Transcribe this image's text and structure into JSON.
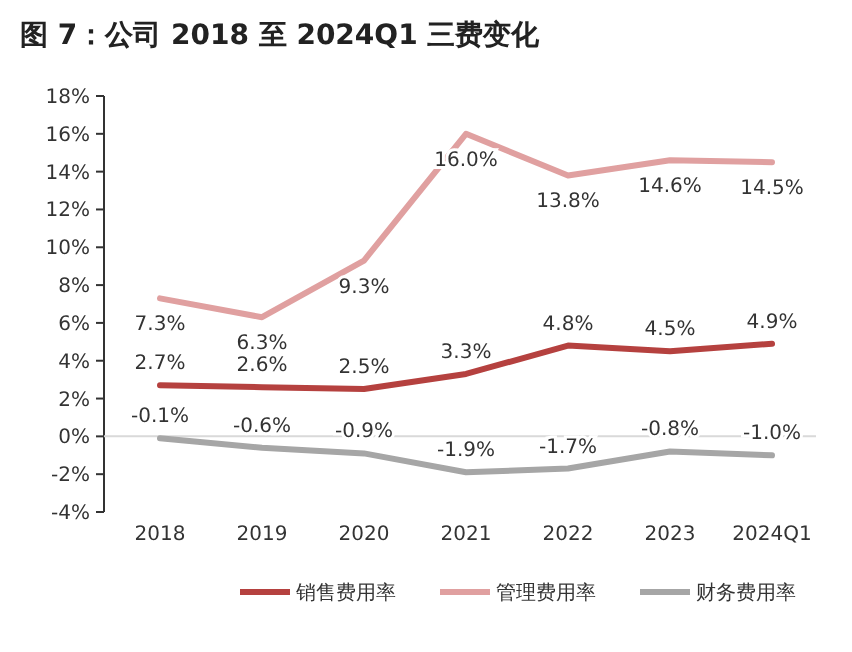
{
  "chart_data": {
    "type": "line",
    "title": "图 7：公司 2018 至 2024Q1 三费变化",
    "categories": [
      "2018",
      "2019",
      "2020",
      "2021",
      "2022",
      "2023",
      "2024Q1"
    ],
    "series": [
      {
        "name": "销售费用率",
        "color": "#b5413f",
        "values": [
          2.7,
          2.6,
          2.5,
          3.3,
          4.8,
          4.5,
          4.9
        ],
        "value_labels": [
          "2.7%",
          "2.6%",
          "2.5%",
          "3.3%",
          "4.8%",
          "4.5%",
          "4.9%"
        ]
      },
      {
        "name": "管理费用率",
        "color": "#e0a0a0",
        "values": [
          7.3,
          6.3,
          9.3,
          16.0,
          13.8,
          14.6,
          14.5
        ],
        "value_labels": [
          "7.3%",
          "6.3%",
          "9.3%",
          "16.0%",
          "13.8%",
          "14.6%",
          "14.5%"
        ]
      },
      {
        "name": "财务费用率",
        "color": "#a6a6a6",
        "values": [
          -0.1,
          -0.6,
          -0.9,
          -1.9,
          -1.7,
          -0.8,
          -1.0
        ],
        "value_labels": [
          "-0.1%",
          "-0.6%",
          "-0.9%",
          "-1.9%",
          "-1.7%",
          "-0.8%",
          "-1.0%"
        ]
      }
    ],
    "ylim": [
      -4,
      18
    ],
    "yticks": [
      {
        "value": -4,
        "label": "-4%"
      },
      {
        "value": -2,
        "label": "-2%"
      },
      {
        "value": 0,
        "label": "0%"
      },
      {
        "value": 2,
        "label": "2%"
      },
      {
        "value": 4,
        "label": "4%"
      },
      {
        "value": 6,
        "label": "6%"
      },
      {
        "value": 8,
        "label": "8%"
      },
      {
        "value": 10,
        "label": "10%"
      },
      {
        "value": 12,
        "label": "12%"
      },
      {
        "value": 14,
        "label": "14%"
      },
      {
        "value": 16,
        "label": "16%"
      },
      {
        "value": 18,
        "label": "18%"
      }
    ],
    "ref_lines": [
      {
        "axis": "y",
        "value": 0,
        "color": "#d9d9d9"
      }
    ],
    "grid": false,
    "legend": "bottom",
    "marker": "none",
    "line_style": "solid"
  }
}
